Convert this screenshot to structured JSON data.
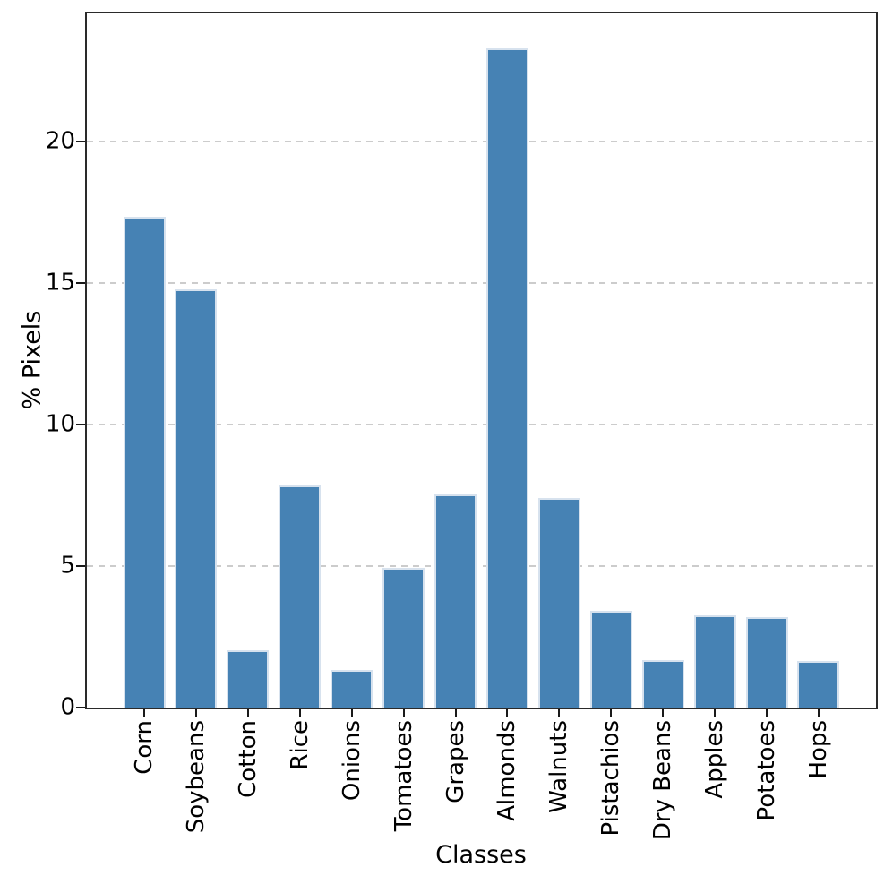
{
  "chart_data": {
    "type": "bar",
    "title": "",
    "xlabel": "Classes",
    "ylabel": "% Pixels",
    "categories": [
      "Corn",
      "Soybeans",
      "Cotton",
      "Rice",
      "Onions",
      "Tomatoes",
      "Grapes",
      "Almonds",
      "Walnuts",
      "Pistachios",
      "Dry Beans",
      "Apples",
      "Potatoes",
      "Hops"
    ],
    "values": [
      17.35,
      14.78,
      2.03,
      7.85,
      1.34,
      4.94,
      7.55,
      23.31,
      7.4,
      3.42,
      1.68,
      3.26,
      3.19,
      1.66
    ],
    "yticks": [
      0,
      5,
      10,
      15,
      20
    ],
    "ylim": [
      0,
      24.54
    ],
    "grid": {
      "axis": "y",
      "style": "dashed",
      "on": true
    },
    "legend": "none",
    "colors": {
      "bar_fill": "#4682b4",
      "bar_edge": "#d7e2ee",
      "grid": "#cccccc",
      "spine": "#2a2a2a",
      "tick": "#1a1a1a",
      "text": "#000000",
      "background": "#ffffff"
    }
  }
}
